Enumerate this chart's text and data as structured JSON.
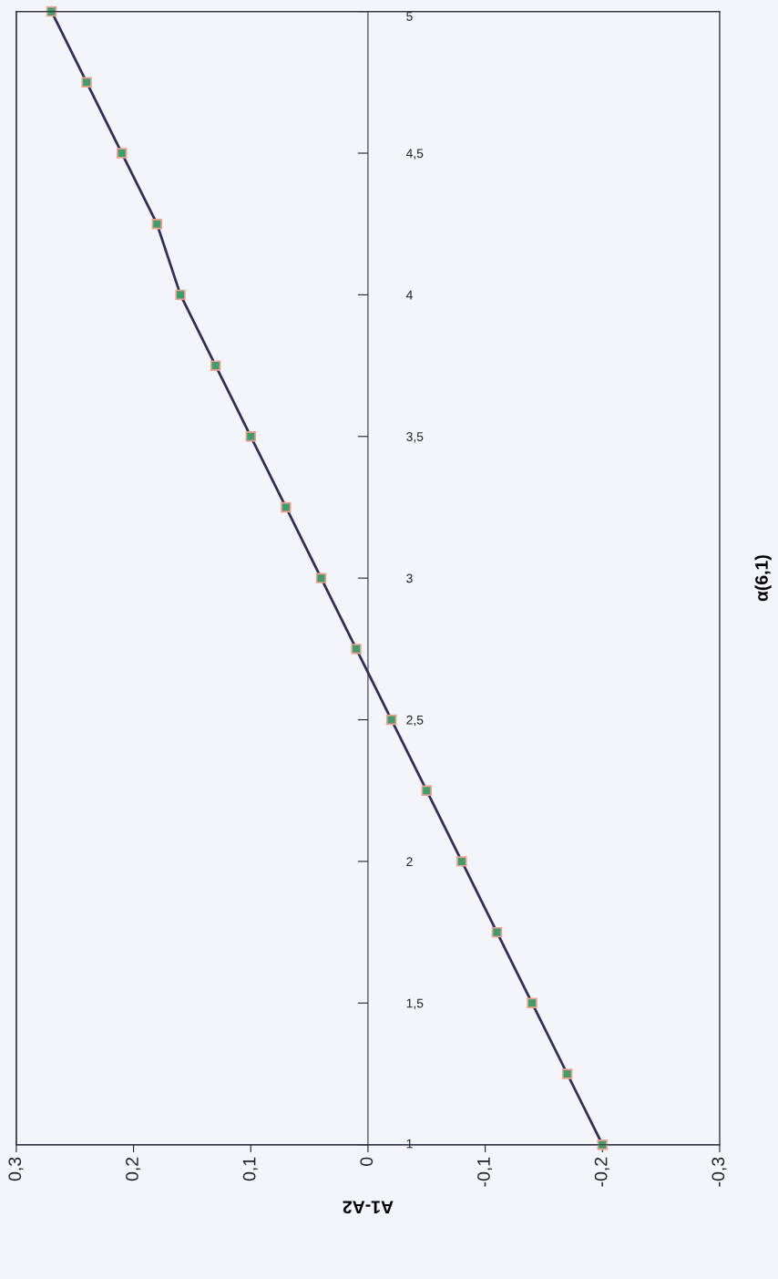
{
  "chart_data": {
    "type": "line",
    "xlabel": "A1-A2",
    "ylabel": "α(6,1)",
    "series": [
      {
        "color": "#2e2e5c",
        "x": [
          -0.2,
          -0.17,
          -0.14,
          -0.11,
          -0.08,
          -0.05,
          -0.02,
          0.01,
          0.04,
          0.07,
          0.1,
          0.13,
          0.16,
          0.18,
          0.21,
          0.24,
          0.27
        ],
        "values": [
          1,
          1.25,
          1.5,
          1.75,
          2,
          2.25,
          2.5,
          2.75,
          3,
          3.25,
          3.5,
          3.75,
          4,
          4.25,
          4.5,
          4.75,
          5
        ]
      }
    ],
    "marker": "square",
    "line_style": "solid",
    "ylim": [
      1,
      5
    ],
    "yticks": [
      1,
      {
        "value": 1.5,
        "label": "1,5"
      },
      2,
      {
        "value": 2.5,
        "label": "2,5"
      },
      3,
      {
        "value": 3.5,
        "label": "3,5"
      },
      4,
      {
        "value": 4.5,
        "label": "4,5"
      },
      5
    ],
    "xlim": [
      0.3,
      -0.3
    ],
    "xticks": [
      {
        "value": 0.3,
        "label": "0,3"
      },
      {
        "value": 0.2,
        "label": "0,2"
      },
      {
        "value": 0.1,
        "label": "0,1"
      },
      0,
      {
        "value": -0.1,
        "label": "-0,1"
      },
      {
        "value": -0.2,
        "label": "-0,2"
      },
      {
        "value": -0.3,
        "label": "-0,3"
      }
    ]
  }
}
